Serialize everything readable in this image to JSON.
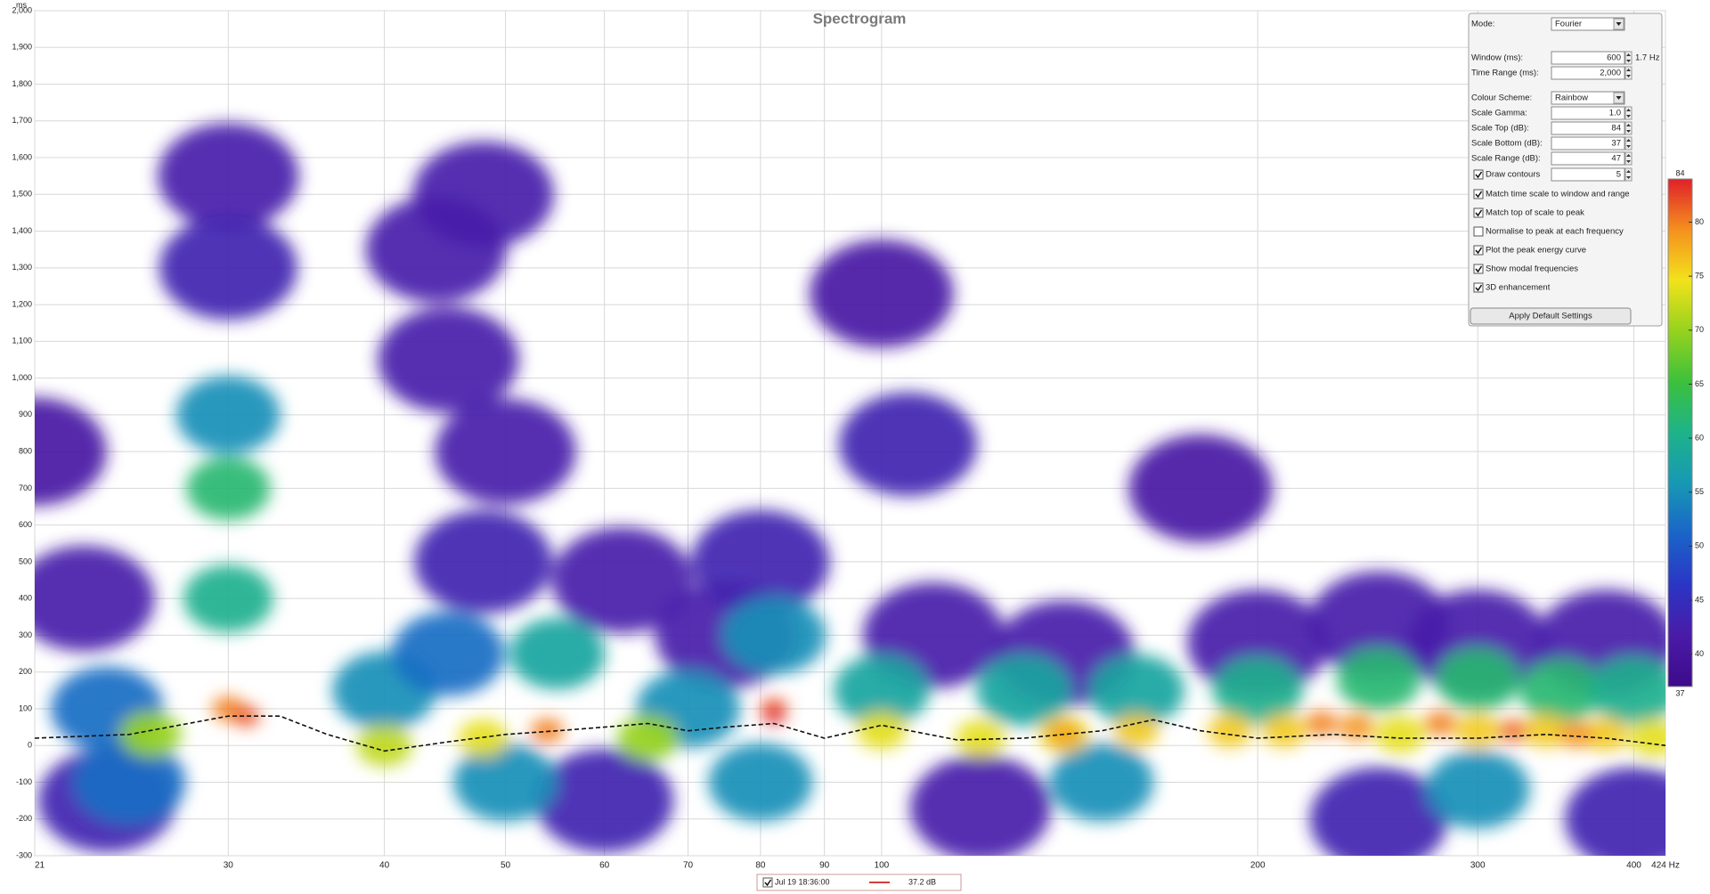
{
  "chart_data": {
    "type": "spectrogram",
    "title": "Spectrogram",
    "y_unit": "ms",
    "log_x": true,
    "grid": true,
    "xlim": [
      21,
      424
    ],
    "xticks": [
      21,
      30,
      40,
      50,
      60,
      70,
      80,
      90,
      100,
      200,
      300,
      400,
      {
        "value": 424,
        "label": "424 Hz"
      }
    ],
    "ylim": [
      -300,
      2000
    ],
    "yticks": [
      -300,
      -200,
      -100,
      0,
      100,
      200,
      300,
      400,
      500,
      600,
      700,
      800,
      900,
      {
        "value": 1000,
        "label": "1,000"
      },
      {
        "value": 1100,
        "label": "1,100"
      },
      {
        "value": 1200,
        "label": "1,200"
      },
      {
        "value": 1300,
        "label": "1,300"
      },
      {
        "value": 1400,
        "label": "1,400"
      },
      {
        "value": 1500,
        "label": "1,500"
      },
      {
        "value": 1600,
        "label": "1,600"
      },
      {
        "value": 1700,
        "label": "1,700"
      },
      {
        "value": 1800,
        "label": "1,800"
      },
      {
        "value": 1900,
        "label": "1,900"
      },
      {
        "value": 2000,
        "label": "2,000"
      }
    ],
    "points": {
      "x": [
        21,
        23,
        30,
        30,
        44,
        48,
        45,
        50,
        48,
        62,
        75,
        80,
        100,
        105,
        180,
        110,
        140,
        200,
        250,
        300,
        380,
        24,
        60,
        120,
        250,
        400,
        30,
        30,
        30,
        24,
        40,
        45,
        55,
        70,
        82,
        100,
        130,
        160,
        200,
        250,
        300,
        350,
        400,
        25,
        50,
        80,
        150,
        300,
        26,
        40,
        48,
        65,
        100,
        120,
        140,
        160,
        190,
        210,
        260,
        300,
        340,
        380,
        415,
        30,
        31,
        54,
        82,
        82,
        140,
        225,
        240,
        280,
        320,
        360
      ],
      "y": [
        800,
        400,
        1550,
        1300,
        1350,
        1500,
        1050,
        800,
        500,
        450,
        300,
        500,
        1230,
        820,
        700,
        300,
        250,
        280,
        330,
        280,
        280,
        -150,
        -150,
        -170,
        -200,
        -200,
        900,
        700,
        400,
        100,
        150,
        250,
        250,
        100,
        300,
        150,
        150,
        150,
        150,
        180,
        180,
        150,
        150,
        -100,
        -100,
        -100,
        -100,
        -120,
        30,
        0,
        20,
        20,
        40,
        20,
        30,
        40,
        40,
        40,
        30,
        40,
        40,
        30,
        20,
        100,
        80,
        40,
        100,
        80,
        30,
        60,
        50,
        60,
        40,
        30
      ],
      "values": [
        41,
        42,
        42,
        43,
        42,
        42,
        42,
        42,
        43,
        42,
        42,
        43,
        41,
        43,
        41,
        42,
        42,
        42,
        42,
        42,
        42,
        43,
        43,
        42,
        43,
        43,
        55,
        62,
        60,
        52,
        55,
        52,
        58,
        55,
        55,
        58,
        58,
        58,
        60,
        62,
        62,
        62,
        60,
        52,
        55,
        55,
        55,
        55,
        70,
        72,
        74,
        70,
        74,
        74,
        74,
        76,
        76,
        76,
        74,
        76,
        76,
        76,
        74,
        80,
        82,
        80,
        82,
        84,
        78,
        80,
        79,
        80,
        81,
        79
      ]
    },
    "peak_curve": {
      "x": [
        21,
        25,
        30,
        33,
        36,
        40,
        45,
        50,
        55,
        60,
        65,
        70,
        75,
        82,
        90,
        100,
        115,
        130,
        150,
        165,
        180,
        200,
        230,
        260,
        300,
        340,
        380,
        424
      ],
      "values": [
        20,
        30,
        80,
        80,
        30,
        -15,
        10,
        30,
        40,
        50,
        60,
        40,
        50,
        60,
        20,
        55,
        15,
        20,
        40,
        70,
        40,
        20,
        30,
        20,
        20,
        30,
        20,
        0
      ]
    },
    "colorbar": {
      "lim": [
        37,
        84
      ],
      "ticks": [
        84,
        80,
        75,
        70,
        65,
        60,
        55,
        50,
        45,
        40,
        37
      ],
      "colors": [
        "#3d0a8a",
        "#4a1ba8",
        "#2b35c4",
        "#1a64c8",
        "#1898b4",
        "#1db38a",
        "#3cc03c",
        "#95d21e",
        "#f2e21c",
        "#f5901e",
        "#e0202a"
      ]
    }
  },
  "settings_panel": {
    "fields": [
      {
        "label": "Mode:",
        "value": "Fourier",
        "kind": "dropdown"
      },
      {
        "label": "Window (ms):",
        "value": "600",
        "unit": "1.7 Hz",
        "kind": "spin"
      },
      {
        "label": "Time Range (ms):",
        "value": "2,000",
        "kind": "spin"
      },
      {
        "label": "Colour Scheme:",
        "value": "Rainbow",
        "kind": "dropdown"
      },
      {
        "label": "Scale Gamma:",
        "value": "1.0",
        "kind": "spin"
      },
      {
        "label": "Scale Top (dB):",
        "value": "84",
        "kind": "spin"
      },
      {
        "label": "Scale Bottom (dB):",
        "value": "37",
        "kind": "spin"
      },
      {
        "label": "Scale Range (dB):",
        "value": "47",
        "kind": "spin"
      },
      {
        "label": "Draw contours",
        "value": "5",
        "kind": "spin",
        "checked": true
      }
    ],
    "checkboxes": [
      {
        "label": "Match time scale to window and range",
        "checked": true
      },
      {
        "label": "Match top of scale to peak",
        "checked": true
      },
      {
        "label": "Normalise to peak at each frequency",
        "checked": false
      },
      {
        "label": "Plot the peak energy curve",
        "checked": true
      },
      {
        "label": "Show modal frequencies",
        "checked": true
      },
      {
        "label": "3D enhancement",
        "checked": true
      }
    ],
    "button": "Apply Default Settings"
  },
  "legend": {
    "label": "Jul 19 18:36:00",
    "value": "37.2 dB",
    "checked": true,
    "color": "#c00000"
  }
}
